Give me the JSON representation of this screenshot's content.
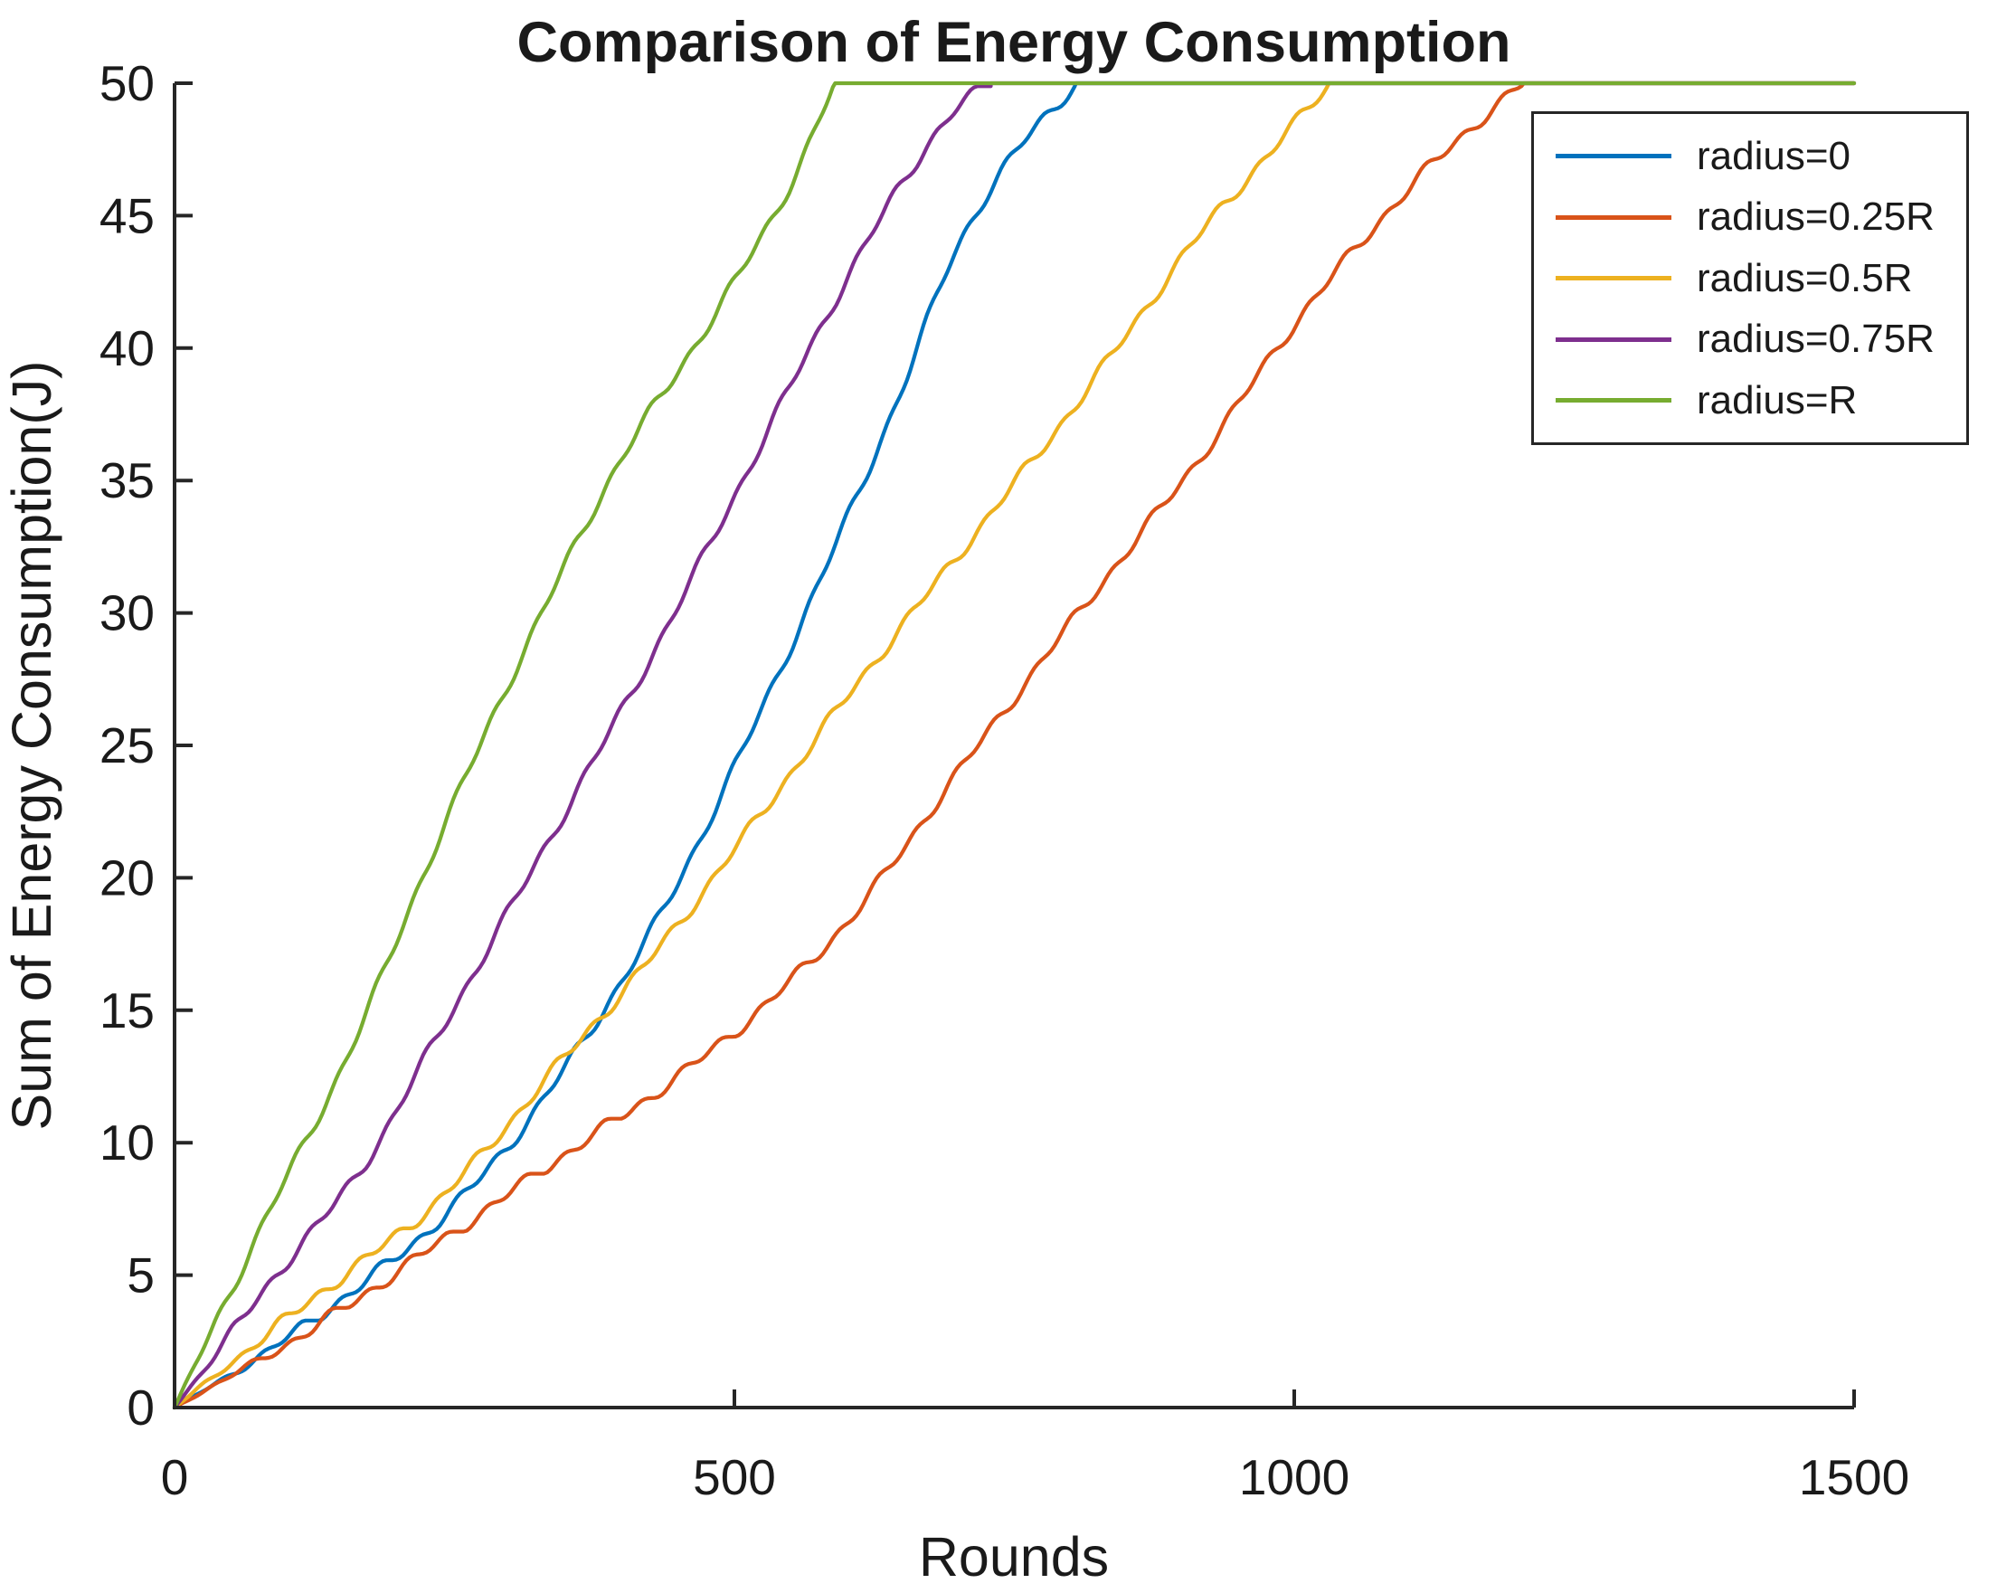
{
  "figure": {
    "background": "#ffffff",
    "text_color": "#1a1a1a",
    "axis_color": "#262626"
  },
  "chart_data": {
    "type": "line",
    "title": "Comparison of Energy Consumption",
    "xlabel": "Rounds",
    "ylabel": "Sum of Energy Consumption(J)",
    "xlim": [
      0,
      1500
    ],
    "ylim": [
      0,
      50
    ],
    "x_ticks": [
      0,
      500,
      1000,
      1500
    ],
    "y_ticks": [
      0,
      5,
      10,
      15,
      20,
      25,
      30,
      35,
      40,
      45,
      50
    ],
    "grid": false,
    "extends_flat_to_x": 1500,
    "legend": {
      "position": "top-right",
      "border_color": "#262626",
      "entries": [
        "radius=0",
        "radius=0.25R",
        "radius=0.5R",
        "radius=0.75R",
        "radius=R"
      ]
    },
    "series": [
      {
        "name": "radius=0",
        "color": "#0072BD",
        "saturation_round": 805,
        "max_value": 50,
        "control_points": [
          [
            0,
            0
          ],
          [
            60,
            1.5
          ],
          [
            120,
            3.2
          ],
          [
            232,
            6.9
          ],
          [
            300,
            10.0
          ],
          [
            350,
            12.9
          ],
          [
            430,
            18.3
          ],
          [
            506,
            24.7
          ],
          [
            600,
            33.5
          ],
          [
            650,
            38.5
          ],
          [
            700,
            43.9
          ],
          [
            755,
            47.6
          ],
          [
            805,
            50
          ]
        ]
      },
      {
        "name": "radius=0.25R",
        "color": "#D95319",
        "saturation_round": 1205,
        "max_value": 50,
        "control_points": [
          [
            0,
            0
          ],
          [
            120,
            2.9
          ],
          [
            232,
            6.1
          ],
          [
            350,
            9.6
          ],
          [
            430,
            11.9
          ],
          [
            506,
            14.4
          ],
          [
            600,
            18.3
          ],
          [
            700,
            24.0
          ],
          [
            800,
            29.6
          ],
          [
            927,
            36.5
          ],
          [
            1000,
            40.9
          ],
          [
            1104,
            46.1
          ],
          [
            1160,
            48.4
          ],
          [
            1205,
            50
          ]
        ]
      },
      {
        "name": "radius=0.5R",
        "color": "#EDB120",
        "saturation_round": 1031,
        "max_value": 50,
        "control_points": [
          [
            0,
            0
          ],
          [
            120,
            4.0
          ],
          [
            232,
            7.7
          ],
          [
            350,
            13.3
          ],
          [
            430,
            17.2
          ],
          [
            506,
            21.4
          ],
          [
            600,
            26.8
          ],
          [
            700,
            32.2
          ],
          [
            800,
            37.6
          ],
          [
            927,
            44.9
          ],
          [
            985,
            47.7
          ],
          [
            1031,
            50
          ]
        ]
      },
      {
        "name": "radius=0.75R",
        "color": "#7E2F8E",
        "saturation_round": 729,
        "max_value": 50,
        "control_points": [
          [
            0,
            0
          ],
          [
            100,
            5.5
          ],
          [
            165,
            8.9
          ],
          [
            232,
            13.8
          ],
          [
            350,
            22.6
          ],
          [
            430,
            28.7
          ],
          [
            506,
            34.9
          ],
          [
            600,
            42.6
          ],
          [
            660,
            46.9
          ],
          [
            700,
            49.1
          ],
          [
            729,
            50
          ]
        ]
      },
      {
        "name": "radius=R",
        "color": "#77AC30",
        "saturation_round": 590,
        "max_value": 50,
        "control_points": [
          [
            0,
            0
          ],
          [
            80,
            7.0
          ],
          [
            157,
            13.5
          ],
          [
            232,
            21.1
          ],
          [
            310,
            28.4
          ],
          [
            400,
            35.9
          ],
          [
            460,
            39.8
          ],
          [
            506,
            42.9
          ],
          [
            550,
            46.2
          ],
          [
            590,
            50
          ]
        ]
      }
    ]
  }
}
